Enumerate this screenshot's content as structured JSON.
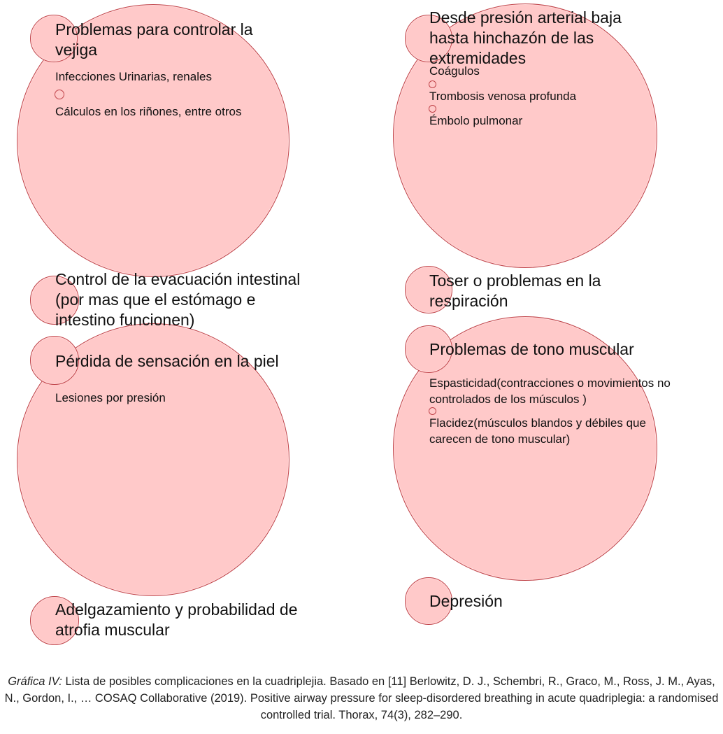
{
  "groups": {
    "bladder": {
      "title": "Problemas para controlar la vejiga",
      "items": [
        "Infecciones Urinarias, renales",
        "Cálculos en los riñones, entre otros"
      ]
    },
    "blood_pressure": {
      "title": "Desde presión arterial baja hasta hinchazón de las extremidades",
      "items": [
        "Coágulos",
        "Trombosis venosa profunda",
        "Émbolo pulmonar"
      ]
    },
    "bowel": {
      "title": "Control de la evacuación intestinal (por mas que el estómago e intestino funcionen)"
    },
    "breathing": {
      "title": "Toser o problemas en la respiración"
    },
    "skin": {
      "title": "Pérdida de sensación en la piel",
      "items": [
        "Lesiones por presión"
      ]
    },
    "muscle_tone": {
      "title": "Problemas de tono muscular",
      "items": [
        "Espasticidad(contracciones o movimientos no controlados de los músculos )",
        "Flacidez(músculos blandos y débiles que carecen de tono muscular)"
      ]
    },
    "atrophy": {
      "title": "Adelgazamiento y probabilidad de atrofia muscular"
    },
    "depression": {
      "title": "Depresión"
    }
  },
  "caption": {
    "label": "Gráfica IV:",
    "text": " Lista de posibles complicaciones en la cuadriplejia. Basado en [11] Berlowitz, D. J., Schembri, R., Graco, M., Ross, J. M., Ayas, N., Gordon, I., … COSAQ Collaborative (2019). Positive airway pressure for sleep-disordered breathing in acute quadriplegia: a randomised controlled trial. Thorax, 74(3), 282–290."
  },
  "colors": {
    "fill": "#ffc9c9",
    "stroke": "#c0444a"
  }
}
